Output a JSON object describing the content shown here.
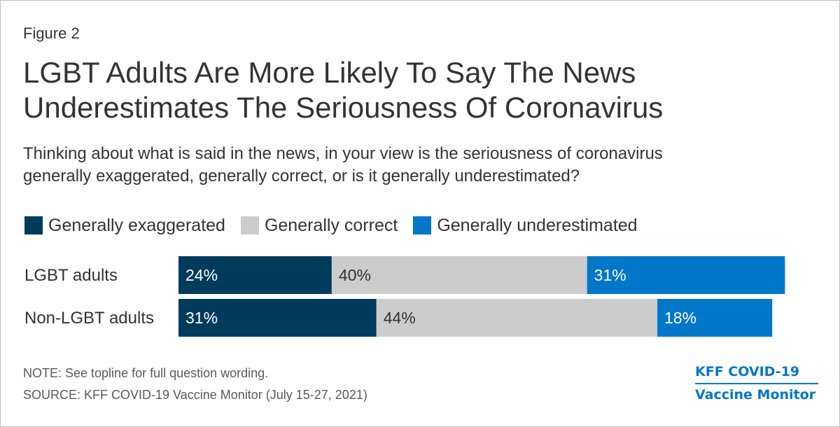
{
  "figure_label": "Figure 2",
  "title_lines": [
    "LGBT Adults Are More Likely To Say The News",
    "Underestimates The Seriousness Of Coronavirus"
  ],
  "subtitle_lines": [
    "Thinking about what is said in the news, in your view is the seriousness of coronavirus",
    "generally exaggerated, generally correct, or is it generally underestimated?"
  ],
  "chart_data": {
    "type": "bar",
    "orientation": "horizontal",
    "stacked": true,
    "categories": [
      "LGBT adults",
      "Non-LGBT adults"
    ],
    "series": [
      {
        "name": "Generally exaggerated",
        "values": [
          24,
          31
        ],
        "labels": [
          "24%",
          "31%"
        ],
        "color": "#003b5c",
        "label_color": "#ffffff"
      },
      {
        "name": "Generally correct",
        "values": [
          40,
          44
        ],
        "labels": [
          "40%",
          "44%"
        ],
        "color": "#cccccc",
        "label_color": "#333333"
      },
      {
        "name": "Generally underestimated",
        "values": [
          31,
          18
        ],
        "labels": [
          "31%",
          "18%"
        ],
        "color": "#0077c8",
        "label_color": "#ffffff"
      }
    ],
    "xlim": [
      0,
      100
    ],
    "legend_position": "top-left",
    "grid": false
  },
  "note": "NOTE: See topline for full question wording.",
  "source": "SOURCE: KFF COVID-19 Vaccine Monitor (July 15-27, 2021)",
  "logo": {
    "line1": "KFF COVID-19",
    "line2": "Vaccine Monitor",
    "color": "#0077c8"
  }
}
